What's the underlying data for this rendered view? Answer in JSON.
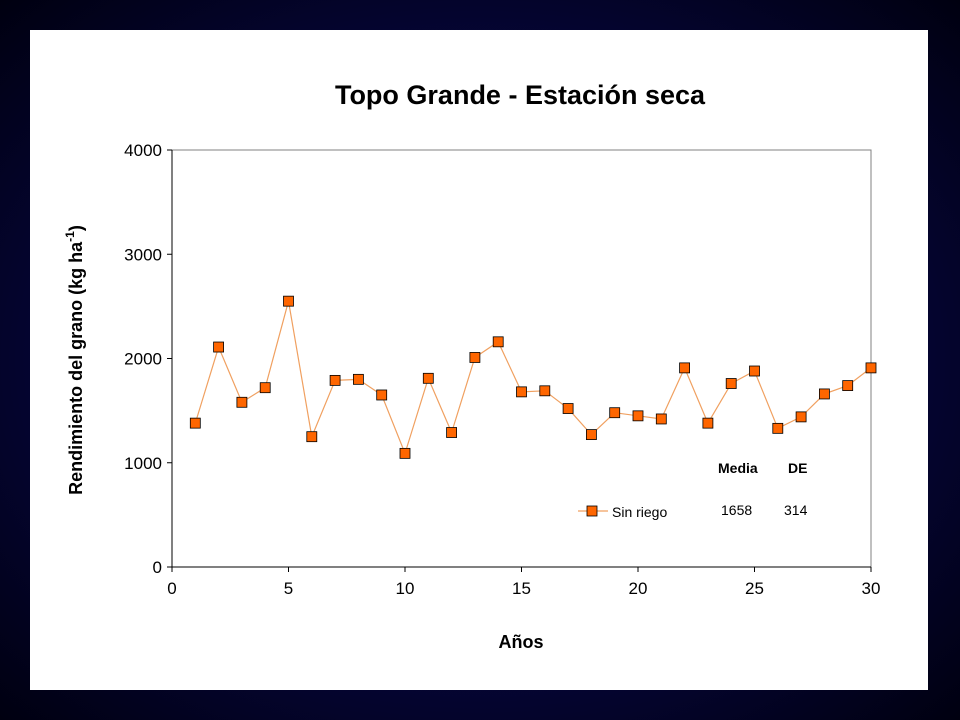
{
  "chart_data": {
    "type": "line",
    "title": "Topo Grande - Estación seca",
    "xlabel": "Años",
    "ylabel": "Rendimiento del grano (kg ha",
    "ylabel_sup": "-1",
    "ylabel_end": ")",
    "xlim": [
      0,
      30
    ],
    "ylim": [
      0,
      4000
    ],
    "xticks": [
      0,
      5,
      10,
      15,
      20,
      25,
      30
    ],
    "yticks": [
      0,
      1000,
      2000,
      3000,
      4000
    ],
    "grid": false,
    "series": [
      {
        "name": "Sin riego",
        "color": "#ff6600",
        "line_color": "#f0a060",
        "marker": "square",
        "x": [
          1,
          2,
          3,
          4,
          5,
          6,
          7,
          8,
          9,
          10,
          11,
          12,
          13,
          14,
          15,
          16,
          17,
          18,
          19,
          20,
          21,
          22,
          23,
          24,
          25,
          26,
          27,
          28,
          29,
          30
        ],
        "y": [
          1380,
          2110,
          1580,
          1720,
          2550,
          1250,
          1790,
          1800,
          1650,
          1090,
          1810,
          1290,
          2010,
          2160,
          1680,
          1690,
          1520,
          1270,
          1480,
          1450,
          1420,
          1910,
          1380,
          1760,
          1880,
          1330,
          1440,
          1660,
          1740,
          1910
        ]
      }
    ],
    "legend": {
      "position": "bottom-right",
      "label": "Sin riego"
    },
    "stats": {
      "headers": [
        "Media",
        "DE"
      ],
      "values": [
        "1658",
        "314"
      ]
    }
  }
}
